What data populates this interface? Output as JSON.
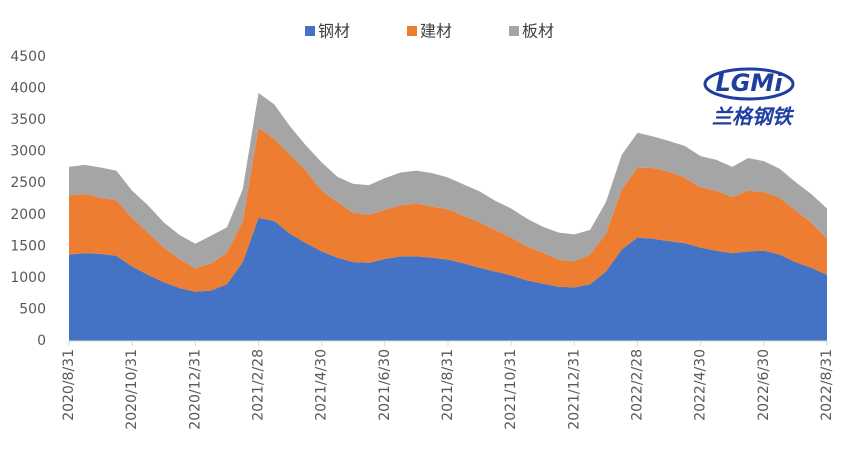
{
  "chart_data": {
    "type": "area",
    "stacked": true,
    "logo": {
      "mark": "LGMi",
      "name": "兰格钢铁"
    },
    "categories": [
      "2020/8/31",
      null,
      null,
      null,
      "2020/10/31",
      null,
      null,
      null,
      "2020/12/31",
      null,
      null,
      null,
      "2021/2/28",
      null,
      null,
      null,
      "2021/4/30",
      null,
      null,
      null,
      "2021/6/30",
      null,
      null,
      null,
      "2021/8/31",
      null,
      null,
      null,
      "2021/10/31",
      null,
      null,
      null,
      "2021/12/31",
      null,
      null,
      null,
      "2022/2/28",
      null,
      null,
      null,
      "2022/4/30",
      null,
      null,
      null,
      "2022/6/30",
      null,
      null,
      null,
      "2022/8/31"
    ],
    "series": [
      {
        "name": "钢材",
        "color": "#4472c4",
        "values": [
          1370,
          1390,
          1380,
          1350,
          1180,
          1050,
          930,
          840,
          780,
          800,
          900,
          1250,
          1950,
          1900,
          1700,
          1550,
          1420,
          1320,
          1250,
          1240,
          1300,
          1340,
          1340,
          1320,
          1290,
          1230,
          1160,
          1100,
          1040,
          960,
          910,
          860,
          850,
          900,
          1100,
          1450,
          1640,
          1620,
          1580,
          1550,
          1480,
          1430,
          1390,
          1420,
          1430,
          1370,
          1250,
          1160,
          1050
        ]
      },
      {
        "name": "建材",
        "color": "#ed7d31",
        "values": [
          940,
          940,
          890,
          880,
          770,
          670,
          550,
          460,
          370,
          430,
          500,
          650,
          1430,
          1300,
          1250,
          1150,
          960,
          880,
          780,
          760,
          780,
          810,
          840,
          810,
          800,
          750,
          720,
          660,
          600,
          540,
          490,
          430,
          410,
          470,
          600,
          950,
          1110,
          1120,
          1100,
          1040,
          950,
          950,
          890,
          960,
          930,
          900,
          820,
          720,
          570
        ]
      },
      {
        "name": "板材",
        "color": "#a5a5a5",
        "values": [
          450,
          460,
          480,
          470,
          430,
          430,
          400,
          380,
          390,
          440,
          400,
          500,
          550,
          550,
          450,
          400,
          450,
          400,
          460,
          470,
          500,
          520,
          520,
          530,
          500,
          500,
          490,
          460,
          460,
          440,
          410,
          430,
          430,
          390,
          500,
          550,
          550,
          500,
          490,
          500,
          500,
          490,
          480,
          520,
          490,
          460,
          450,
          450,
          480
        ]
      }
    ],
    "ylim": [
      0,
      4500
    ],
    "yticks": [
      0,
      500,
      1000,
      1500,
      2000,
      2500,
      3000,
      3500,
      4000,
      4500
    ],
    "grid": false,
    "legend": "top"
  }
}
